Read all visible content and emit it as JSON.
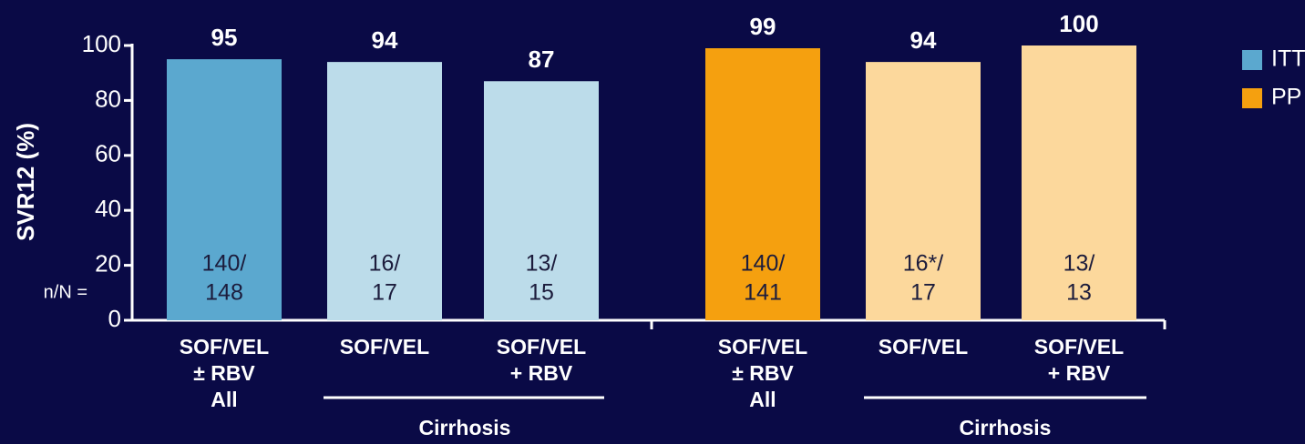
{
  "chart_data": {
    "type": "bar",
    "ylabel": "SVR12 (%)",
    "ylim": [
      0,
      100
    ],
    "yticks": [
      0,
      20,
      40,
      60,
      80,
      100
    ],
    "categories": [
      [
        "SOF/VEL",
        "± RBV",
        "All"
      ],
      [
        "SOF/VEL"
      ],
      [
        "SOF/VEL",
        "+ RBV"
      ],
      [
        "SOF/VEL",
        "± RBV",
        "All"
      ],
      [
        "SOF/VEL"
      ],
      [
        "SOF/VEL",
        "+ RBV"
      ]
    ],
    "group_labels": [
      "Cirrhosis",
      "Cirrhosis"
    ],
    "series": [
      {
        "name": "ITT",
        "color": "#5ba8cf",
        "values": [
          95,
          94,
          87,
          null,
          null,
          null
        ]
      },
      {
        "name": "PP",
        "color": "#f5a00f",
        "values": [
          null,
          null,
          null,
          99,
          94,
          100
        ]
      }
    ],
    "bar_colors": [
      "#5ba8cf",
      "#bcdcea",
      "#bcdcea",
      "#f5a00f",
      "#fcd89c",
      "#fcd89c"
    ],
    "count_label": "n/N =",
    "counts": [
      [
        "140/",
        "148"
      ],
      [
        "16/",
        "17"
      ],
      [
        "13/",
        "15"
      ],
      [
        "140/",
        "141"
      ],
      [
        "16*/",
        "17"
      ],
      [
        "13/",
        "13"
      ]
    ],
    "legend": "right"
  }
}
